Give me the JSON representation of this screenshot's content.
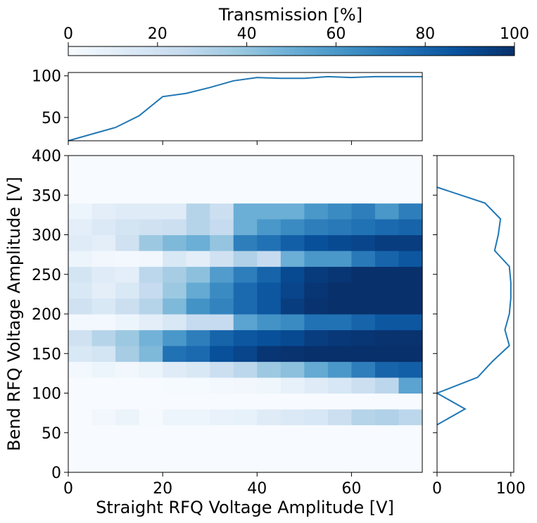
{
  "chart_data": [
    {
      "type": "heatmap",
      "xlabel": "Straight RFQ Voltage Amplitude [V]",
      "ylabel": "Bend RFQ Voltage Amplitude [V]",
      "xlim": [
        0,
        75
      ],
      "ylim": [
        0,
        400
      ],
      "xticks": [
        0,
        20,
        40,
        60
      ],
      "yticks": [
        0,
        50,
        100,
        150,
        200,
        250,
        300,
        350,
        400
      ],
      "x_bin_edges": [
        0,
        5,
        10,
        15,
        20,
        25,
        30,
        35,
        40,
        45,
        50,
        55,
        60,
        65,
        70,
        75
      ],
      "y_bin_edges": [
        0,
        20,
        40,
        60,
        80,
        100,
        120,
        140,
        160,
        180,
        200,
        220,
        240,
        260,
        280,
        300,
        320,
        340,
        360,
        380,
        400
      ],
      "colormap": "Blues",
      "vmin": 0,
      "vmax": 100,
      "values_by_row_bottom_to_top": [
        [
          0,
          0,
          0,
          0,
          0,
          0,
          0,
          0,
          0,
          0,
          0,
          0,
          0,
          0,
          0
        ],
        [
          0,
          0,
          0,
          0,
          0,
          0,
          0,
          0,
          0,
          0,
          0,
          0,
          0,
          0,
          0
        ],
        [
          0,
          0,
          0,
          0,
          0,
          0,
          0,
          0,
          0,
          0,
          0,
          0,
          0,
          0,
          0
        ],
        [
          0,
          3,
          6,
          1,
          5,
          5,
          7,
          8,
          12,
          14,
          16,
          22,
          30,
          32,
          28
        ],
        [
          0,
          0,
          0,
          0,
          0,
          0,
          0,
          0,
          0,
          0,
          0,
          0,
          0,
          0,
          0
        ],
        [
          0,
          0,
          0,
          0,
          1,
          1,
          2,
          3,
          4,
          8,
          12,
          16,
          22,
          28,
          55
        ],
        [
          2,
          5,
          3,
          6,
          12,
          15,
          22,
          28,
          38,
          42,
          52,
          60,
          70,
          80,
          82
        ],
        [
          15,
          18,
          35,
          45,
          75,
          78,
          88,
          92,
          98,
          99,
          100,
          100,
          100,
          100,
          100
        ],
        [
          20,
          30,
          38,
          48,
          60,
          70,
          80,
          85,
          88,
          90,
          95,
          97,
          98,
          99,
          99
        ],
        [
          2,
          2,
          5,
          10,
          15,
          25,
          25,
          55,
          62,
          65,
          75,
          75,
          80,
          85,
          85
        ],
        [
          20,
          15,
          22,
          30,
          45,
          62,
          68,
          78,
          85,
          95,
          99,
          100,
          100,
          100,
          100
        ],
        [
          15,
          10,
          15,
          25,
          38,
          52,
          65,
          78,
          85,
          92,
          98,
          100,
          100,
          100,
          100
        ],
        [
          18,
          12,
          10,
          28,
          35,
          42,
          58,
          70,
          80,
          90,
          96,
          98,
          100,
          100,
          100
        ],
        [
          5,
          3,
          2,
          3,
          15,
          10,
          20,
          32,
          25,
          50,
          60,
          60,
          72,
          80,
          85
        ],
        [
          12,
          10,
          20,
          38,
          45,
          50,
          40,
          70,
          75,
          82,
          88,
          90,
          92,
          95,
          95
        ],
        [
          10,
          14,
          18,
          20,
          22,
          30,
          25,
          50,
          60,
          65,
          70,
          72,
          75,
          78,
          80
        ],
        [
          5,
          10,
          12,
          12,
          12,
          30,
          22,
          50,
          50,
          50,
          60,
          65,
          70,
          60,
          70
        ],
        [
          0,
          0,
          0,
          0,
          0,
          0,
          0,
          0,
          0,
          0,
          0,
          0,
          0,
          0,
          0
        ],
        [
          0,
          0,
          0,
          0,
          0,
          0,
          0,
          0,
          0,
          0,
          0,
          0,
          0,
          0,
          0
        ],
        [
          0,
          0,
          0,
          0,
          0,
          0,
          0,
          0,
          0,
          0,
          0,
          0,
          0,
          0,
          0
        ]
      ]
    },
    {
      "type": "line",
      "ylim": [
        22,
        104
      ],
      "yticks": [
        50,
        100
      ],
      "x": [
        0,
        5,
        10,
        15,
        20,
        25,
        30,
        35,
        40,
        45,
        50,
        55,
        60,
        65,
        70,
        75
      ],
      "series": [
        {
          "values": [
            22,
            30,
            38,
            52,
            75,
            79,
            86,
            94,
            98,
            97,
            97,
            99,
            98,
            99,
            99,
            99
          ]
        }
      ]
    },
    {
      "type": "line",
      "xlim": [
        0,
        104
      ],
      "xticks": [
        0,
        100
      ],
      "y": [
        60,
        80,
        100,
        120,
        140,
        160,
        180,
        200,
        220,
        240,
        260,
        280,
        300,
        320,
        340,
        360
      ],
      "series": [
        {
          "values": [
            0,
            38,
            0,
            55,
            75,
            98,
            92,
            98,
            100,
            100,
            98,
            78,
            83,
            86,
            65,
            0
          ]
        }
      ]
    },
    {
      "type": "colorbar",
      "title": "Transmission [%]",
      "range": [
        0,
        100
      ],
      "ticks": [
        0,
        20,
        40,
        60,
        80,
        100
      ]
    }
  ]
}
